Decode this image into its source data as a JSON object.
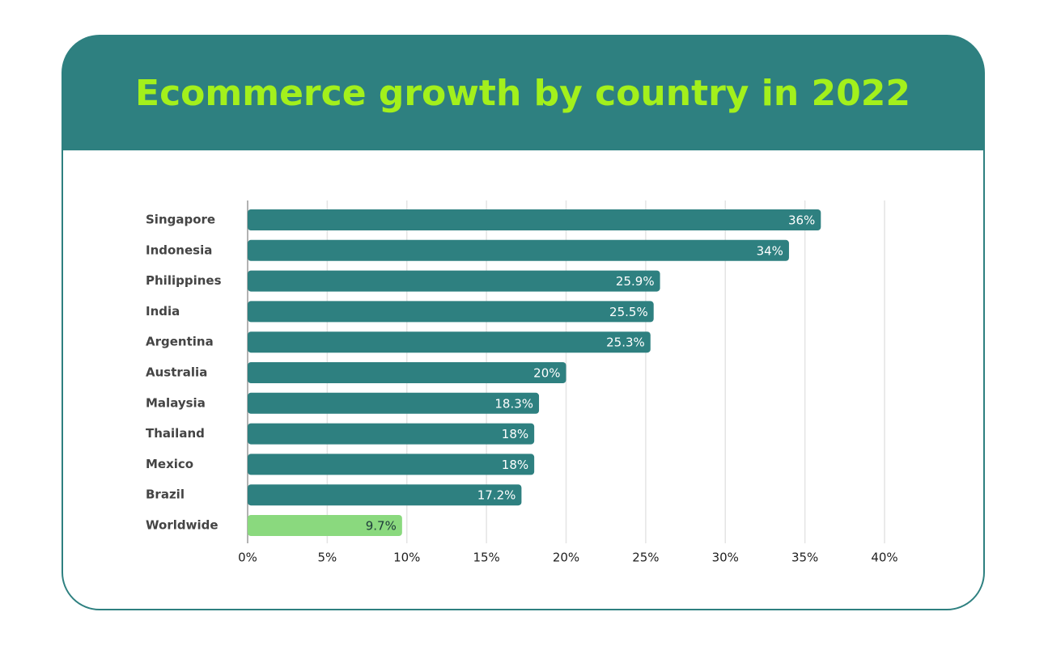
{
  "chart_data": {
    "type": "hbar",
    "title": "Ecommerce growth by country in 2022",
    "categories": [
      "Singapore",
      "Indonesia",
      "Philippines",
      "India",
      "Argentina",
      "Australia",
      "Malaysia",
      "Thailand",
      "Mexico",
      "Brazil",
      "Worldwide"
    ],
    "values": [
      36,
      34,
      25.9,
      25.5,
      25.3,
      20,
      18.3,
      18,
      18,
      17.2,
      9.7
    ],
    "value_labels": [
      "36%",
      "34%",
      "25.9%",
      "25.5%",
      "25.3%",
      "20%",
      "18.3%",
      "18%",
      "18%",
      "17.2%",
      "9.7%"
    ],
    "colors": [
      "#2e8080",
      "#2e8080",
      "#2e8080",
      "#2e8080",
      "#2e8080",
      "#2e8080",
      "#2e8080",
      "#2e8080",
      "#2e8080",
      "#2e8080",
      "#8ad97e"
    ],
    "xlim": [
      0,
      40
    ],
    "xticks": [
      {
        "value": 0,
        "label": "0%"
      },
      {
        "value": 5,
        "label": "5%"
      },
      {
        "value": 10,
        "label": "10%"
      },
      {
        "value": 15,
        "label": "15%"
      },
      {
        "value": 20,
        "label": "20%"
      },
      {
        "value": 25,
        "label": "25%"
      },
      {
        "value": 30,
        "label": "30%"
      },
      {
        "value": 35,
        "label": "35%"
      },
      {
        "value": 40,
        "label": "40%"
      }
    ],
    "grid": true
  }
}
